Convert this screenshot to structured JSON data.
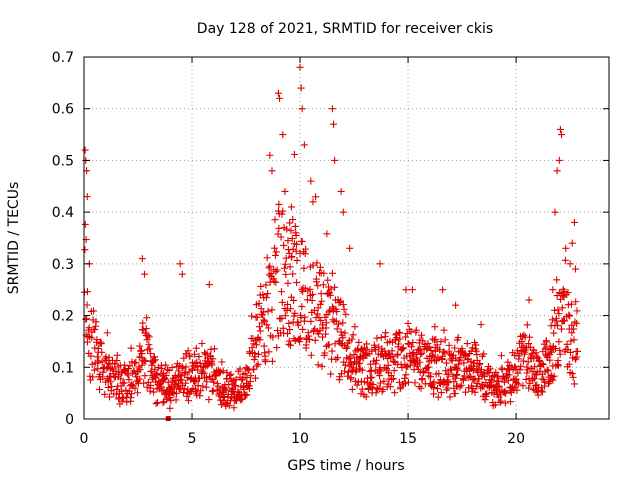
{
  "chart_data": {
    "type": "scatter",
    "title": "Day 128 of 2021, SRMTID for receiver ckis",
    "xlabel": "GPS time / hours",
    "ylabel": "SRMTID / TECUs",
    "xlim": [
      0,
      24.3
    ],
    "ylim": [
      0,
      0.7
    ],
    "xticks": [
      0,
      5,
      10,
      15,
      20
    ],
    "yticks": [
      0,
      0.1,
      0.2,
      0.3,
      0.4,
      0.5,
      0.6,
      0.7
    ],
    "grid": true,
    "legend": "none",
    "marker": "+",
    "series": [
      {
        "name": "ckis",
        "color": "#e00000",
        "baseline": {
          "x": [
            0,
            0.1,
            0.3,
            0.6,
            1,
            1.5,
            2,
            2.5,
            2.8,
            3.2,
            3.6,
            4,
            4.5,
            5,
            5.5,
            6,
            6.5,
            7,
            7.5,
            7.8,
            8.2,
            8.6,
            9,
            9.5,
            10,
            10.5,
            11,
            11.5,
            12,
            12.3,
            12.7,
            13,
            14,
            15,
            16,
            17,
            18,
            18.5,
            19,
            19.5,
            20,
            20.5,
            21,
            21.5,
            22,
            22.2,
            22.5,
            22.8
          ],
          "y": [
            0.35,
            0.3,
            0.18,
            0.14,
            0.1,
            0.09,
            0.08,
            0.09,
            0.16,
            0.1,
            0.08,
            0.06,
            0.1,
            0.09,
            0.11,
            0.1,
            0.07,
            0.05,
            0.08,
            0.13,
            0.2,
            0.25,
            0.32,
            0.3,
            0.28,
            0.24,
            0.22,
            0.21,
            0.18,
            0.13,
            0.11,
            0.11,
            0.12,
            0.14,
            0.12,
            0.11,
            0.12,
            0.1,
            0.07,
            0.08,
            0.1,
            0.14,
            0.1,
            0.12,
            0.2,
            0.22,
            0.18,
            0.15
          ]
        },
        "spikes": [
          {
            "x": 0.05,
            "y": 0.52
          },
          {
            "x": 0.08,
            "y": 0.5
          },
          {
            "x": 0.12,
            "y": 0.48
          },
          {
            "x": 0.15,
            "y": 0.43
          },
          {
            "x": 0.25,
            "y": 0.3
          },
          {
            "x": 2.7,
            "y": 0.31
          },
          {
            "x": 2.8,
            "y": 0.28
          },
          {
            "x": 4.45,
            "y": 0.3
          },
          {
            "x": 4.55,
            "y": 0.28
          },
          {
            "x": 5.8,
            "y": 0.26
          },
          {
            "x": 8.6,
            "y": 0.51
          },
          {
            "x": 8.7,
            "y": 0.48
          },
          {
            "x": 9,
            "y": 0.63
          },
          {
            "x": 9.05,
            "y": 0.62
          },
          {
            "x": 9.2,
            "y": 0.55
          },
          {
            "x": 9.3,
            "y": 0.44
          },
          {
            "x": 9.6,
            "y": 0.41
          },
          {
            "x": 10,
            "y": 0.68
          },
          {
            "x": 10.05,
            "y": 0.64
          },
          {
            "x": 10.1,
            "y": 0.6
          },
          {
            "x": 10.2,
            "y": 0.53
          },
          {
            "x": 10.5,
            "y": 0.46
          },
          {
            "x": 10.6,
            "y": 0.42
          },
          {
            "x": 11.5,
            "y": 0.6
          },
          {
            "x": 11.55,
            "y": 0.57
          },
          {
            "x": 11.6,
            "y": 0.5
          },
          {
            "x": 11.9,
            "y": 0.44
          },
          {
            "x": 12,
            "y": 0.4
          },
          {
            "x": 12.3,
            "y": 0.33
          },
          {
            "x": 13.7,
            "y": 0.3
          },
          {
            "x": 14.9,
            "y": 0.25
          },
          {
            "x": 15.2,
            "y": 0.25
          },
          {
            "x": 16.6,
            "y": 0.25
          },
          {
            "x": 17.2,
            "y": 0.22
          },
          {
            "x": 20.6,
            "y": 0.23
          },
          {
            "x": 21.7,
            "y": 0.25
          },
          {
            "x": 21.8,
            "y": 0.4
          },
          {
            "x": 21.9,
            "y": 0.48
          },
          {
            "x": 22,
            "y": 0.5
          },
          {
            "x": 22.05,
            "y": 0.56
          },
          {
            "x": 22.1,
            "y": 0.55
          },
          {
            "x": 22.3,
            "y": 0.33
          },
          {
            "x": 22.5,
            "y": 0.3
          },
          {
            "x": 22.6,
            "y": 0.34
          },
          {
            "x": 22.7,
            "y": 0.38
          },
          {
            "x": 22.75,
            "y": 0.29
          }
        ]
      }
    ],
    "extra_marker": {
      "x": 3.9,
      "y": 0.0,
      "shape": "square"
    }
  }
}
